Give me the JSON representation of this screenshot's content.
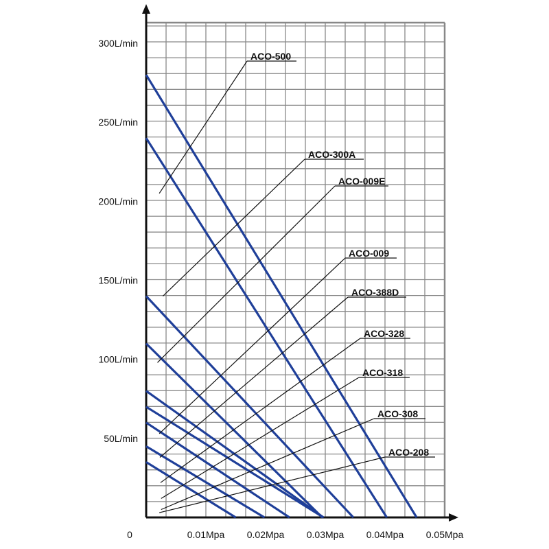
{
  "chart_data": {
    "type": "line",
    "title": "",
    "xlabel": "",
    "ylabel": "",
    "xlim": [
      0,
      0.05
    ],
    "ylim": [
      0,
      310
    ],
    "grid": true,
    "origin_label": "0",
    "x_ticks": [
      {
        "value": 0.01,
        "label": "0.01Mpa"
      },
      {
        "value": 0.02,
        "label": "0.02Mpa"
      },
      {
        "value": 0.03,
        "label": "0.03Mpa"
      },
      {
        "value": 0.04,
        "label": "0.04Mpa"
      },
      {
        "value": 0.05,
        "label": "0.05Mpa"
      }
    ],
    "y_ticks": [
      {
        "value": 50,
        "label": "50L/min"
      },
      {
        "value": 100,
        "label": "100L/min"
      },
      {
        "value": 150,
        "label": "150L/min"
      },
      {
        "value": 200,
        "label": "200L/min"
      },
      {
        "value": 250,
        "label": "250L/min"
      },
      {
        "value": 300,
        "label": "300L/min"
      }
    ],
    "line_color": "#1f3f99",
    "series": [
      {
        "name": "ACO-500",
        "points": [
          [
            0,
            280
          ],
          [
            0.0453,
            0
          ]
        ],
        "label_anchor": [
          0.0022,
          205
        ]
      },
      {
        "name": "ACO-300A",
        "points": [
          [
            0,
            240
          ],
          [
            0.0403,
            0
          ]
        ],
        "label_anchor": [
          0.0028,
          140
        ]
      },
      {
        "name": "ACO-009E",
        "points": [
          [
            0,
            140
          ],
          [
            0.0347,
            0
          ]
        ],
        "label_anchor": [
          0.0019,
          98
        ]
      },
      {
        "name": "ACO-009",
        "points": [
          [
            0,
            110
          ],
          [
            0.0295,
            0
          ]
        ],
        "label_anchor": [
          0.0022,
          53
        ]
      },
      {
        "name": "ACO-388D",
        "points": [
          [
            0,
            80
          ],
          [
            0.0297,
            0
          ]
        ],
        "label_anchor": [
          0.0023,
          38
        ]
      },
      {
        "name": "ACO-328",
        "points": [
          [
            0,
            70
          ],
          [
            0.0297,
            0
          ]
        ],
        "label_anchor": [
          0.0024,
          22
        ]
      },
      {
        "name": "ACO-318",
        "points": [
          [
            0,
            60
          ],
          [
            0.024,
            0
          ]
        ],
        "label_anchor": [
          0.0025,
          12
        ]
      },
      {
        "name": "ACO-308",
        "points": [
          [
            0,
            45
          ],
          [
            0.0198,
            0
          ]
        ],
        "label_anchor": [
          0.0025,
          5
        ]
      },
      {
        "name": "ACO-208",
        "points": [
          [
            0,
            35
          ],
          [
            0.015,
            0
          ]
        ],
        "label_anchor": [
          0.0022,
          3
        ]
      }
    ],
    "labels": [
      {
        "series": "ACO-500",
        "text": "ACO-500"
      },
      {
        "series": "ACO-300A",
        "text": "ACO-300A"
      },
      {
        "series": "ACO-009E",
        "text": "ACO-009E"
      },
      {
        "series": "ACO-009",
        "text": "ACO-009"
      },
      {
        "series": "ACO-388D",
        "text": "ACO-388D"
      },
      {
        "series": "ACO-328",
        "text": "ACO-328"
      },
      {
        "series": "ACO-318",
        "text": "ACO-318"
      },
      {
        "series": "ACO-308",
        "text": "ACO-308"
      },
      {
        "series": "ACO-208",
        "text": "ACO-208"
      }
    ]
  }
}
